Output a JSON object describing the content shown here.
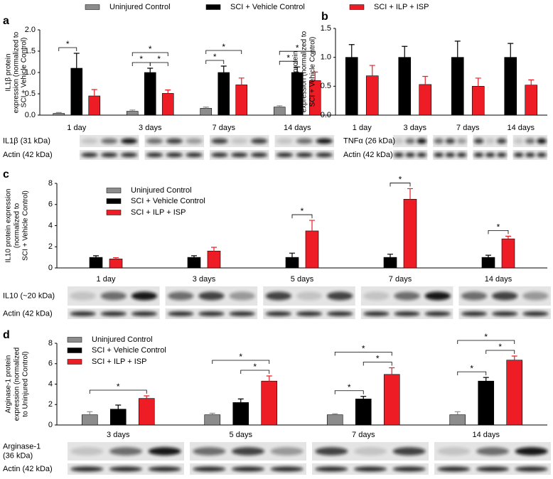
{
  "chart_data": [
    {
      "panel": "a",
      "type": "bar",
      "ylabel": [
        "IL1β protein",
        "expression (normalized to",
        "SCI + Vehicle Control)"
      ],
      "categories": [
        "1 day",
        "3 days",
        "7 days",
        "14 days"
      ],
      "series": [
        {
          "name": "Uninjured Control",
          "color": "#8c8c8c",
          "values": [
            0.04,
            0.09,
            0.16,
            0.19
          ],
          "errors": [
            0.02,
            0.03,
            0.03,
            0.03
          ]
        },
        {
          "name": "SCI + Vehicle Control",
          "color": "#000000",
          "values": [
            1.1,
            1.0,
            1.0,
            1.0
          ],
          "errors": [
            0.35,
            0.1,
            0.15,
            0.13
          ]
        },
        {
          "name": "SCI + ILP + ISP",
          "color": "#ee1c25",
          "values": [
            0.45,
            0.51,
            0.71,
            0.81
          ],
          "errors": [
            0.15,
            0.08,
            0.16,
            0.2
          ]
        }
      ],
      "ylim": [
        0,
        2
      ],
      "yticks": [
        {
          "value": 0,
          "label": "0.0"
        },
        {
          "value": 0.5,
          "label": "0.5"
        },
        {
          "value": 1,
          "label": "1.0"
        },
        {
          "value": 1.5,
          "label": "1.5"
        },
        {
          "value": 2,
          "label": "2.0"
        }
      ],
      "legend": "top",
      "significance": [
        {
          "label": "*",
          "category": 0,
          "between": [
            0,
            1
          ]
        },
        {
          "label": "*",
          "category": 1,
          "between": [
            0,
            1
          ]
        },
        {
          "label": "*",
          "category": 1,
          "between": [
            1,
            2
          ]
        },
        {
          "label": "*",
          "category": 1,
          "between": [
            0,
            2
          ]
        },
        {
          "label": "*",
          "category": 2,
          "between": [
            0,
            1
          ]
        },
        {
          "label": "*",
          "category": 2,
          "between": [
            0,
            2
          ]
        },
        {
          "label": "*",
          "category": 3,
          "between": [
            0,
            1
          ]
        },
        {
          "label": "*",
          "category": 3,
          "between": [
            0,
            2
          ]
        }
      ],
      "blot_labels": [
        [
          "IL1β (31 kDa)"
        ],
        [
          "Actin (42 kDa)"
        ]
      ]
    },
    {
      "panel": "b",
      "type": "bar",
      "ylabel": [
        "TNFα protein",
        "expression (normalized to",
        "SCI + Vehicle  Control)"
      ],
      "categories": [
        "1 day",
        "3 days",
        "7 days",
        "14 days"
      ],
      "series": [
        {
          "color": "#000000",
          "values": [
            1.0,
            1.0,
            1.0,
            1.0
          ],
          "errors": [
            0.22,
            0.19,
            0.28,
            0.24
          ]
        },
        {
          "color": "#ee1c25",
          "values": [
            0.68,
            0.53,
            0.5,
            0.52
          ],
          "errors": [
            0.18,
            0.14,
            0.14,
            0.09
          ]
        }
      ],
      "ylim": [
        0,
        1.5
      ],
      "yticks": [
        {
          "value": 0,
          "label": "0.0"
        },
        {
          "value": 0.5,
          "label": "0.5"
        },
        {
          "value": 1,
          "label": "1.0"
        },
        {
          "value": 1.5,
          "label": "1.5"
        }
      ],
      "legend": "none",
      "significance": [],
      "blot_labels": [
        [
          "TNFα (26 kDa)"
        ],
        [
          "Actin (42 kDa)"
        ]
      ]
    },
    {
      "panel": "c",
      "type": "bar",
      "ylabel": [
        "IL10 protein expression",
        "(normalized to",
        "SCI + Vehicle Control)"
      ],
      "categories": [
        "1 day",
        "3 days",
        "5 days",
        "7 days",
        "14 days"
      ],
      "series": [
        {
          "name": "Uninjured Control",
          "color": "#8c8c8c",
          "values": [
            null,
            null,
            null,
            null,
            null
          ],
          "errors": [
            null,
            null,
            null,
            null,
            null
          ]
        },
        {
          "name": "SCI + Vehicle Control",
          "color": "#000000",
          "values": [
            1.0,
            1.0,
            1.0,
            1.0,
            1.0
          ],
          "errors": [
            0.15,
            0.15,
            0.4,
            0.3,
            0.2
          ]
        },
        {
          "name": "SCI + ILP + ISP",
          "color": "#ee1c25",
          "values": [
            0.85,
            1.6,
            3.5,
            6.5,
            2.75
          ],
          "errors": [
            0.12,
            0.35,
            1.0,
            1.0,
            0.25
          ]
        }
      ],
      "ylim": [
        0,
        8
      ],
      "yticks": [
        0,
        2,
        4,
        6,
        8
      ],
      "legend": "upper left",
      "significance": [
        {
          "label": "*",
          "category": 2,
          "between": [
            1,
            2
          ]
        },
        {
          "label": "*",
          "category": 3,
          "between": [
            1,
            2
          ]
        },
        {
          "label": "*",
          "category": 4,
          "between": [
            1,
            2
          ]
        }
      ],
      "blot_labels": [
        [
          "IL10 (~20 kDa)"
        ],
        [
          "Actin (42 kDa)"
        ]
      ]
    },
    {
      "panel": "d",
      "type": "bar",
      "ylabel": [
        "Arginase-1 protein",
        "expression (normalized",
        "to Uninjured Control)"
      ],
      "categories": [
        "3 days",
        "5 days",
        "7 days",
        "14 days"
      ],
      "series": [
        {
          "name": "Uninjured Control",
          "color": "#8c8c8c",
          "values": [
            1.0,
            1.0,
            1.0,
            1.0
          ],
          "errors": [
            0.3,
            0.15,
            0.1,
            0.3
          ]
        },
        {
          "name": "SCI + Vehicle Control",
          "color": "#000000",
          "values": [
            1.55,
            2.2,
            2.55,
            4.3
          ],
          "errors": [
            0.4,
            0.35,
            0.25,
            0.35
          ]
        },
        {
          "name": "SCI + ILP + ISP",
          "color": "#ee1c25",
          "values": [
            2.6,
            4.3,
            4.95,
            6.35
          ],
          "errors": [
            0.25,
            0.5,
            0.65,
            0.4
          ]
        }
      ],
      "ylim": [
        0,
        8
      ],
      "yticks": [
        0,
        2,
        4,
        6,
        8
      ],
      "legend": "upper left",
      "significance": [
        {
          "label": "*",
          "category": 0,
          "between": [
            0,
            2
          ]
        },
        {
          "label": "*",
          "category": 1,
          "between": [
            1,
            2
          ]
        },
        {
          "label": "*",
          "category": 1,
          "between": [
            0,
            2
          ]
        },
        {
          "label": "*",
          "category": 2,
          "between": [
            0,
            1
          ]
        },
        {
          "label": "*",
          "category": 2,
          "between": [
            1,
            2
          ]
        },
        {
          "label": "*",
          "category": 2,
          "between": [
            0,
            2
          ]
        },
        {
          "label": "*",
          "category": 3,
          "between": [
            0,
            1
          ]
        },
        {
          "label": "*",
          "category": 3,
          "between": [
            1,
            2
          ]
        },
        {
          "label": "*",
          "category": 3,
          "between": [
            0,
            2
          ]
        }
      ],
      "blot_labels": [
        [
          "Arginase-1",
          "(36 kDa)"
        ],
        [
          "Actin (42 kDa)"
        ]
      ]
    }
  ]
}
